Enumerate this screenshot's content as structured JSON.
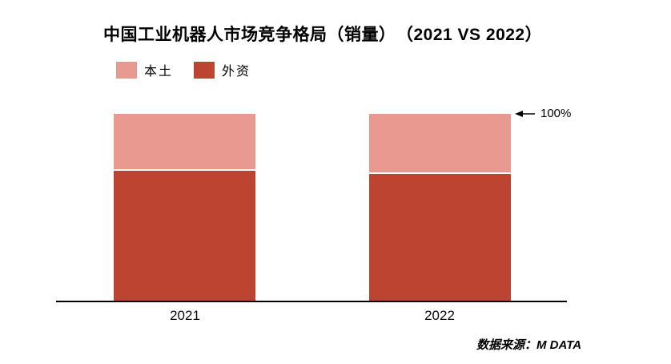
{
  "chart_data": {
    "type": "bar",
    "stacked": true,
    "percent": true,
    "title": "中国工业机器人市场竞争格局（销量）　（2021 VS 2022）",
    "categories": [
      "2021",
      "2022"
    ],
    "series": [
      {
        "name": "本土",
        "color": "#E99A90",
        "values": [
          29.5,
          31.0
        ]
      },
      {
        "name": "外资",
        "color": "#BC4431",
        "values": [
          70.5,
          69.0
        ]
      }
    ],
    "ylim": [
      0,
      100
    ],
    "grid": false,
    "legend_position": "top-left",
    "annotation": {
      "text": "100%",
      "target": "top-of-bars"
    },
    "axis_color": "#000000"
  },
  "source": {
    "text": "数据来源：M DATA"
  }
}
